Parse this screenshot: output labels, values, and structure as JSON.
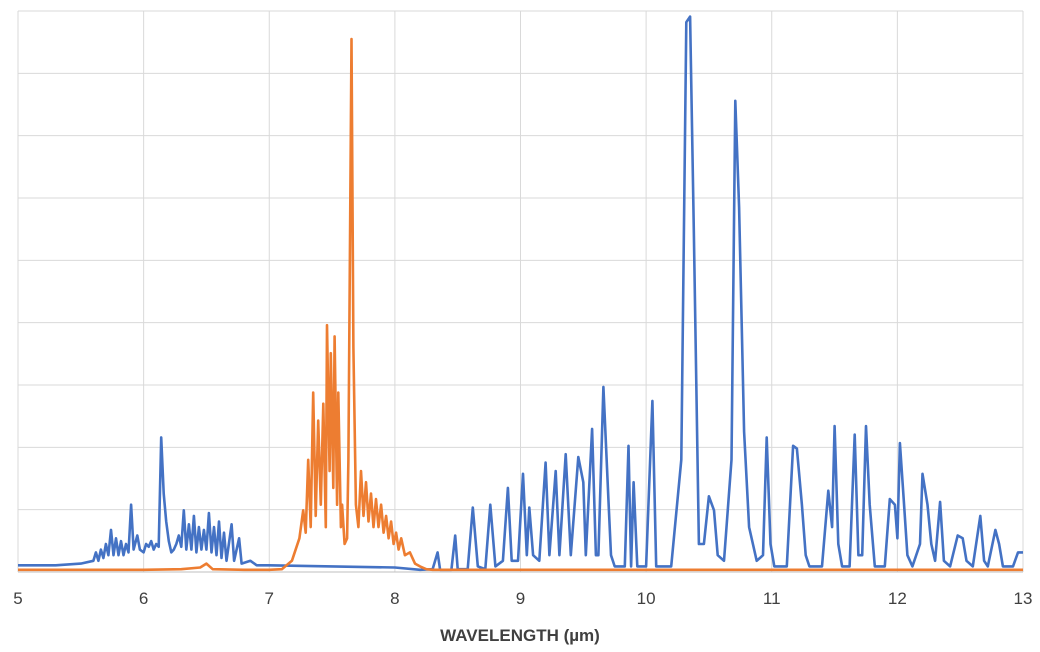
{
  "chart_data": {
    "type": "line",
    "title": "",
    "xlabel": "WAVELENGTH (µm)",
    "ylabel": "",
    "xlim": [
      5,
      13
    ],
    "ylim": [
      0,
      1
    ],
    "x_ticks": [
      "5",
      "6",
      "7",
      "8",
      "9",
      "10",
      "11",
      "12",
      "13"
    ],
    "grid": true,
    "grid_rows": 9,
    "legend": "none",
    "series": [
      {
        "color": "#4472C4",
        "points": [
          [
            5.0,
            0.012
          ],
          [
            5.3,
            0.012
          ],
          [
            5.5,
            0.015
          ],
          [
            5.6,
            0.02
          ],
          [
            5.62,
            0.035
          ],
          [
            5.64,
            0.02
          ],
          [
            5.66,
            0.04
          ],
          [
            5.68,
            0.025
          ],
          [
            5.7,
            0.05
          ],
          [
            5.72,
            0.03
          ],
          [
            5.74,
            0.075
          ],
          [
            5.76,
            0.03
          ],
          [
            5.78,
            0.06
          ],
          [
            5.8,
            0.03
          ],
          [
            5.82,
            0.055
          ],
          [
            5.84,
            0.03
          ],
          [
            5.86,
            0.05
          ],
          [
            5.88,
            0.035
          ],
          [
            5.9,
            0.12
          ],
          [
            5.92,
            0.04
          ],
          [
            5.95,
            0.065
          ],
          [
            5.97,
            0.04
          ],
          [
            6.0,
            0.035
          ],
          [
            6.02,
            0.05
          ],
          [
            6.04,
            0.045
          ],
          [
            6.06,
            0.055
          ],
          [
            6.08,
            0.04
          ],
          [
            6.1,
            0.05
          ],
          [
            6.12,
            0.045
          ],
          [
            6.14,
            0.24
          ],
          [
            6.16,
            0.14
          ],
          [
            6.18,
            0.09
          ],
          [
            6.2,
            0.055
          ],
          [
            6.22,
            0.035
          ],
          [
            6.24,
            0.04
          ],
          [
            6.26,
            0.05
          ],
          [
            6.28,
            0.065
          ],
          [
            6.3,
            0.045
          ],
          [
            6.32,
            0.11
          ],
          [
            6.34,
            0.04
          ],
          [
            6.36,
            0.085
          ],
          [
            6.38,
            0.04
          ],
          [
            6.4,
            0.1
          ],
          [
            6.42,
            0.035
          ],
          [
            6.44,
            0.08
          ],
          [
            6.46,
            0.04
          ],
          [
            6.48,
            0.075
          ],
          [
            6.5,
            0.04
          ],
          [
            6.52,
            0.105
          ],
          [
            6.54,
            0.035
          ],
          [
            6.56,
            0.08
          ],
          [
            6.58,
            0.03
          ],
          [
            6.6,
            0.09
          ],
          [
            6.62,
            0.025
          ],
          [
            6.64,
            0.07
          ],
          [
            6.66,
            0.02
          ],
          [
            6.7,
            0.085
          ],
          [
            6.72,
            0.02
          ],
          [
            6.76,
            0.06
          ],
          [
            6.78,
            0.015
          ],
          [
            6.85,
            0.02
          ],
          [
            6.9,
            0.012
          ],
          [
            7.0,
            0.012
          ],
          [
            7.5,
            0.01
          ],
          [
            8.0,
            0.008
          ],
          [
            8.2,
            0.004
          ],
          [
            8.3,
            0.005
          ],
          [
            8.34,
            0.035
          ],
          [
            8.36,
            0.004
          ],
          [
            8.45,
            0.004
          ],
          [
            8.48,
            0.065
          ],
          [
            8.5,
            0.005
          ],
          [
            8.58,
            0.005
          ],
          [
            8.62,
            0.115
          ],
          [
            8.66,
            0.01
          ],
          [
            8.72,
            0.005
          ],
          [
            8.76,
            0.12
          ],
          [
            8.8,
            0.01
          ],
          [
            8.86,
            0.02
          ],
          [
            8.9,
            0.15
          ],
          [
            8.93,
            0.02
          ],
          [
            8.98,
            0.02
          ],
          [
            9.02,
            0.175
          ],
          [
            9.05,
            0.03
          ],
          [
            9.07,
            0.115
          ],
          [
            9.1,
            0.03
          ],
          [
            9.15,
            0.02
          ],
          [
            9.2,
            0.195
          ],
          [
            9.23,
            0.03
          ],
          [
            9.28,
            0.18
          ],
          [
            9.31,
            0.03
          ],
          [
            9.36,
            0.21
          ],
          [
            9.4,
            0.03
          ],
          [
            9.46,
            0.205
          ],
          [
            9.5,
            0.16
          ],
          [
            9.52,
            0.03
          ],
          [
            9.57,
            0.255
          ],
          [
            9.6,
            0.03
          ],
          [
            9.62,
            0.03
          ],
          [
            9.66,
            0.33
          ],
          [
            9.7,
            0.13
          ],
          [
            9.72,
            0.03
          ],
          [
            9.75,
            0.01
          ],
          [
            9.83,
            0.01
          ],
          [
            9.86,
            0.225
          ],
          [
            9.88,
            0.01
          ],
          [
            9.9,
            0.16
          ],
          [
            9.93,
            0.01
          ],
          [
            10.0,
            0.01
          ],
          [
            10.05,
            0.305
          ],
          [
            10.08,
            0.01
          ],
          [
            10.2,
            0.01
          ],
          [
            10.28,
            0.2
          ],
          [
            10.32,
            0.98
          ],
          [
            10.35,
            0.99
          ],
          [
            10.38,
            0.6
          ],
          [
            10.42,
            0.05
          ],
          [
            10.46,
            0.05
          ],
          [
            10.5,
            0.135
          ],
          [
            10.54,
            0.11
          ],
          [
            10.57,
            0.03
          ],
          [
            10.62,
            0.02
          ],
          [
            10.68,
            0.2
          ],
          [
            10.71,
            0.84
          ],
          [
            10.74,
            0.65
          ],
          [
            10.78,
            0.25
          ],
          [
            10.82,
            0.08
          ],
          [
            10.88,
            0.02
          ],
          [
            10.93,
            0.03
          ],
          [
            10.96,
            0.24
          ],
          [
            10.99,
            0.05
          ],
          [
            11.02,
            0.01
          ],
          [
            11.12,
            0.01
          ],
          [
            11.17,
            0.225
          ],
          [
            11.2,
            0.22
          ],
          [
            11.24,
            0.12
          ],
          [
            11.27,
            0.03
          ],
          [
            11.3,
            0.01
          ],
          [
            11.4,
            0.01
          ],
          [
            11.45,
            0.145
          ],
          [
            11.48,
            0.08
          ],
          [
            11.5,
            0.26
          ],
          [
            11.53,
            0.05
          ],
          [
            11.56,
            0.01
          ],
          [
            11.62,
            0.01
          ],
          [
            11.66,
            0.245
          ],
          [
            11.69,
            0.03
          ],
          [
            11.72,
            0.03
          ],
          [
            11.75,
            0.26
          ],
          [
            11.78,
            0.12
          ],
          [
            11.82,
            0.01
          ],
          [
            11.9,
            0.01
          ],
          [
            11.94,
            0.13
          ],
          [
            11.98,
            0.12
          ],
          [
            12.0,
            0.06
          ],
          [
            12.02,
            0.23
          ],
          [
            12.05,
            0.13
          ],
          [
            12.08,
            0.03
          ],
          [
            12.12,
            0.01
          ],
          [
            12.18,
            0.05
          ],
          [
            12.2,
            0.175
          ],
          [
            12.24,
            0.12
          ],
          [
            12.27,
            0.05
          ],
          [
            12.3,
            0.02
          ],
          [
            12.34,
            0.125
          ],
          [
            12.37,
            0.02
          ],
          [
            12.42,
            0.01
          ],
          [
            12.48,
            0.065
          ],
          [
            12.52,
            0.06
          ],
          [
            12.55,
            0.02
          ],
          [
            12.6,
            0.01
          ],
          [
            12.66,
            0.1
          ],
          [
            12.69,
            0.02
          ],
          [
            12.72,
            0.01
          ],
          [
            12.78,
            0.075
          ],
          [
            12.81,
            0.05
          ],
          [
            12.84,
            0.01
          ],
          [
            12.92,
            0.01
          ],
          [
            12.96,
            0.035
          ],
          [
            13.0,
            0.035
          ]
        ]
      },
      {
        "color": "#ED7D31",
        "points": [
          [
            5.0,
            0.004
          ],
          [
            5.5,
            0.004
          ],
          [
            6.0,
            0.004
          ],
          [
            6.3,
            0.005
          ],
          [
            6.45,
            0.008
          ],
          [
            6.5,
            0.015
          ],
          [
            6.55,
            0.005
          ],
          [
            6.8,
            0.004
          ],
          [
            7.0,
            0.004
          ],
          [
            7.1,
            0.005
          ],
          [
            7.18,
            0.02
          ],
          [
            7.24,
            0.06
          ],
          [
            7.27,
            0.11
          ],
          [
            7.29,
            0.07
          ],
          [
            7.31,
            0.2
          ],
          [
            7.33,
            0.08
          ],
          [
            7.35,
            0.32
          ],
          [
            7.37,
            0.1
          ],
          [
            7.39,
            0.27
          ],
          [
            7.41,
            0.12
          ],
          [
            7.43,
            0.3
          ],
          [
            7.45,
            0.08
          ],
          [
            7.46,
            0.44
          ],
          [
            7.48,
            0.18
          ],
          [
            7.49,
            0.39
          ],
          [
            7.51,
            0.15
          ],
          [
            7.52,
            0.42
          ],
          [
            7.54,
            0.12
          ],
          [
            7.55,
            0.32
          ],
          [
            7.57,
            0.08
          ],
          [
            7.58,
            0.12
          ],
          [
            7.6,
            0.05
          ],
          [
            7.62,
            0.06
          ],
          [
            7.63,
            0.2
          ],
          [
            7.655,
            0.95
          ],
          [
            7.67,
            0.4
          ],
          [
            7.69,
            0.12
          ],
          [
            7.71,
            0.08
          ],
          [
            7.73,
            0.18
          ],
          [
            7.75,
            0.1
          ],
          [
            7.77,
            0.16
          ],
          [
            7.79,
            0.09
          ],
          [
            7.81,
            0.14
          ],
          [
            7.83,
            0.08
          ],
          [
            7.85,
            0.13
          ],
          [
            7.87,
            0.08
          ],
          [
            7.89,
            0.12
          ],
          [
            7.91,
            0.07
          ],
          [
            7.93,
            0.1
          ],
          [
            7.95,
            0.06
          ],
          [
            7.97,
            0.09
          ],
          [
            7.99,
            0.05
          ],
          [
            8.01,
            0.07
          ],
          [
            8.03,
            0.04
          ],
          [
            8.05,
            0.06
          ],
          [
            8.08,
            0.03
          ],
          [
            8.12,
            0.035
          ],
          [
            8.16,
            0.015
          ],
          [
            8.2,
            0.01
          ],
          [
            8.25,
            0.005
          ],
          [
            8.3,
            0.004
          ],
          [
            9.0,
            0.004
          ],
          [
            10.0,
            0.004
          ],
          [
            11.0,
            0.004
          ],
          [
            12.0,
            0.004
          ],
          [
            13.0,
            0.004
          ]
        ]
      }
    ]
  }
}
